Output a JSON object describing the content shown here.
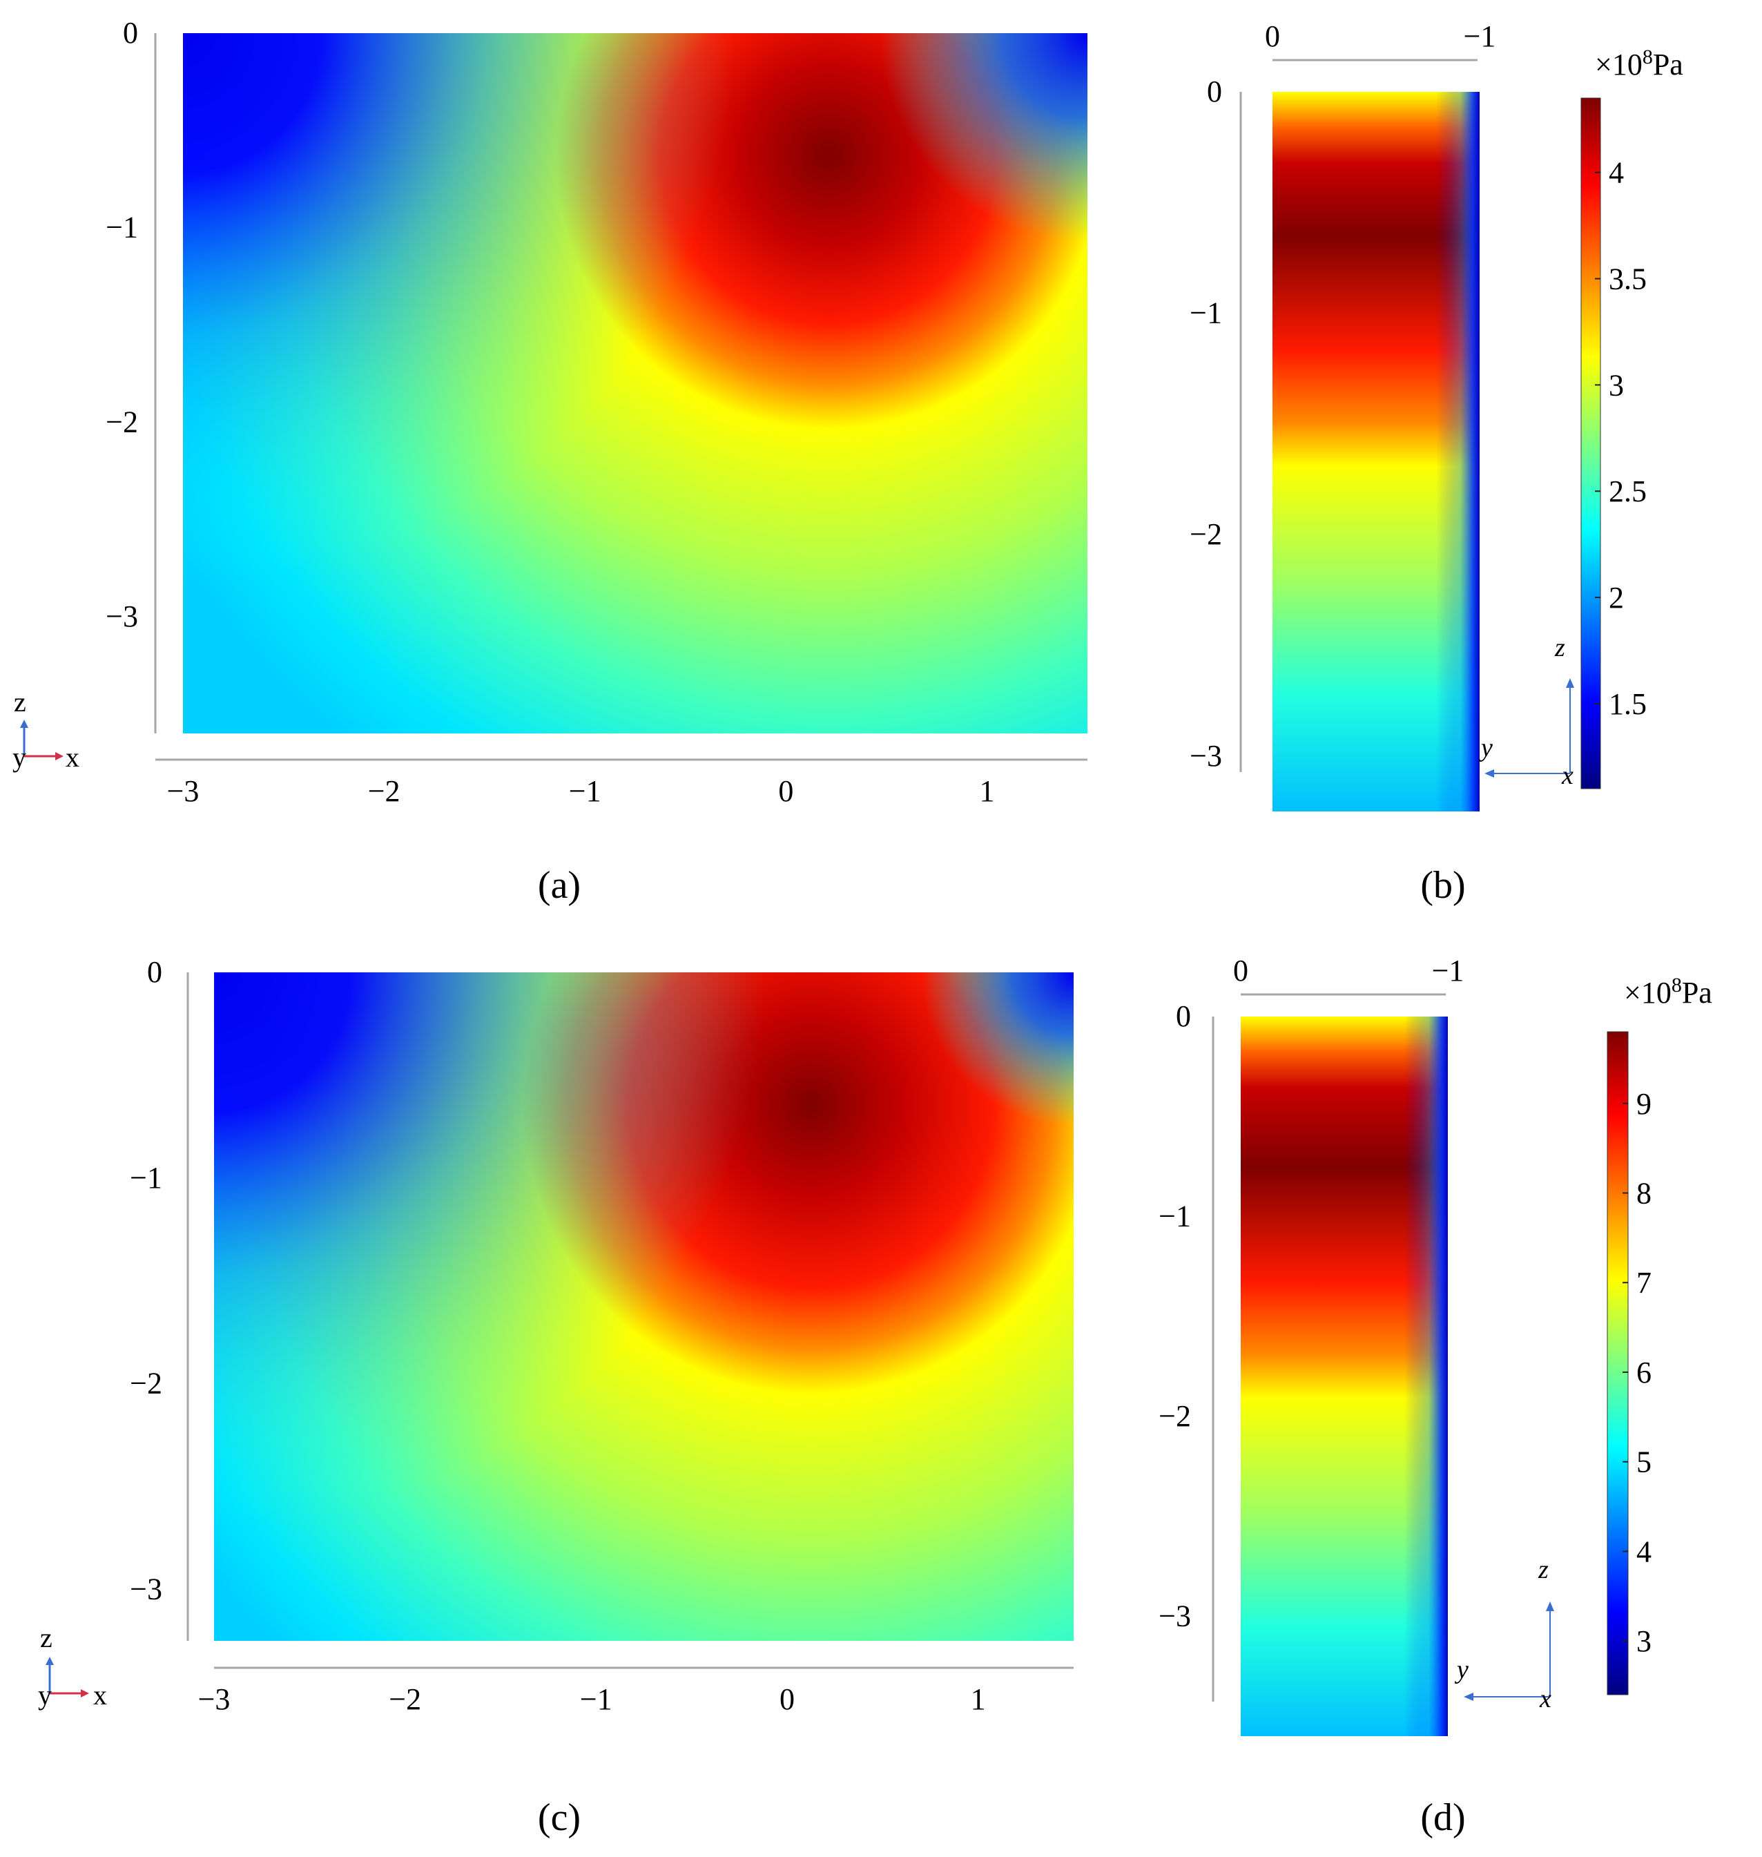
{
  "colors": {
    "jet": [
      "#00007f",
      "#0000ff",
      "#007fff",
      "#00ffff",
      "#7fff7f",
      "#ffff00",
      "#ff7f00",
      "#ff0000",
      "#7f0000"
    ],
    "axis_line": "#a6a6a6",
    "triad_blue": "#3a6fd0",
    "triad_red": "#d0304a"
  },
  "panels": {
    "a": {
      "label": "(a)",
      "letter": "a"
    },
    "b": {
      "label": "(b)",
      "letter": "b"
    },
    "c": {
      "label": "(c)",
      "letter": "c"
    },
    "d": {
      "label": "(d)",
      "letter": "d"
    }
  },
  "colorbars": [
    {
      "title_prefix": "×10",
      "title_exp": "8",
      "title_unit": "Pa"
    },
    {
      "title_prefix": "×10",
      "title_exp": "8",
      "title_unit": "Pa"
    }
  ],
  "triads": {
    "front": {
      "z": "z",
      "y": "y",
      "x": "x"
    },
    "side": {
      "z": "z",
      "y": "y",
      "x": "x"
    }
  },
  "chart_data": [
    {
      "panel": "a",
      "type": "heatmap",
      "view": "x-z section",
      "x_ticks": [
        -3,
        -2,
        -1,
        0,
        1
      ],
      "z_ticks": [
        0,
        -1,
        -2,
        -3
      ],
      "x_tick_labels": [
        "−3",
        "−2",
        "−1",
        "0",
        "1"
      ],
      "z_tick_labels": [
        "0",
        "−1",
        "−2",
        "−3"
      ],
      "xlim": [
        -3,
        1.5
      ],
      "zlim": [
        -3.6,
        0
      ],
      "max_location": {
        "x": 0.2,
        "z": -0.6
      }
    },
    {
      "panel": "b",
      "type": "heatmap",
      "view": "y-z section",
      "y_ticks": [
        0,
        -1
      ],
      "z_ticks": [
        0,
        -1,
        -2,
        -3
      ],
      "y_tick_labels": [
        "0",
        "−1"
      ],
      "z_tick_labels": [
        "0",
        "−1",
        "−2",
        "−3"
      ],
      "ylim": [
        0,
        -1
      ],
      "zlim": [
        -3.25,
        0
      ],
      "max_location": {
        "y": -0.35,
        "z": -0.65
      }
    },
    {
      "panel": "c",
      "type": "heatmap",
      "view": "x-z section",
      "x_ticks": [
        -3,
        -2,
        -1,
        0,
        1
      ],
      "z_ticks": [
        0,
        -1,
        -2,
        -3
      ],
      "x_tick_labels": [
        "−3",
        "−2",
        "−1",
        "0",
        "1"
      ],
      "z_tick_labels": [
        "0",
        "−1",
        "−2",
        "−3"
      ],
      "xlim": [
        -3,
        1.5
      ],
      "zlim": [
        -3.25,
        0
      ],
      "max_location": {
        "x": 0.1,
        "z": -0.7
      }
    },
    {
      "panel": "d",
      "type": "heatmap",
      "view": "y-z section",
      "y_ticks": [
        0,
        -1
      ],
      "z_ticks": [
        0,
        -1,
        -2,
        -3
      ],
      "y_tick_labels": [
        "0",
        "−1"
      ],
      "z_tick_labels": [
        "0",
        "−1",
        "−2",
        "−3"
      ],
      "ylim": [
        0,
        -1
      ],
      "zlim": [
        -3.6,
        0
      ],
      "max_location": {
        "y": -0.3,
        "z": -0.75
      }
    },
    {
      "type": "colorbar",
      "panels": [
        "a",
        "b"
      ],
      "unit": "×10^8 Pa",
      "range": [
        1.1,
        4.35
      ],
      "ticks": [
        1.5,
        2,
        2.5,
        3,
        3.5,
        4
      ],
      "tick_labels": [
        "1.5",
        "2",
        "2.5",
        "3",
        "3.5",
        "4"
      ]
    },
    {
      "type": "colorbar",
      "panels": [
        "c",
        "d"
      ],
      "unit": "×10^8 Pa",
      "range": [
        2.4,
        9.8
      ],
      "ticks": [
        3,
        4,
        5,
        6,
        7,
        8,
        9
      ],
      "tick_labels": [
        "3",
        "4",
        "5",
        "6",
        "7",
        "8",
        "9"
      ]
    }
  ]
}
